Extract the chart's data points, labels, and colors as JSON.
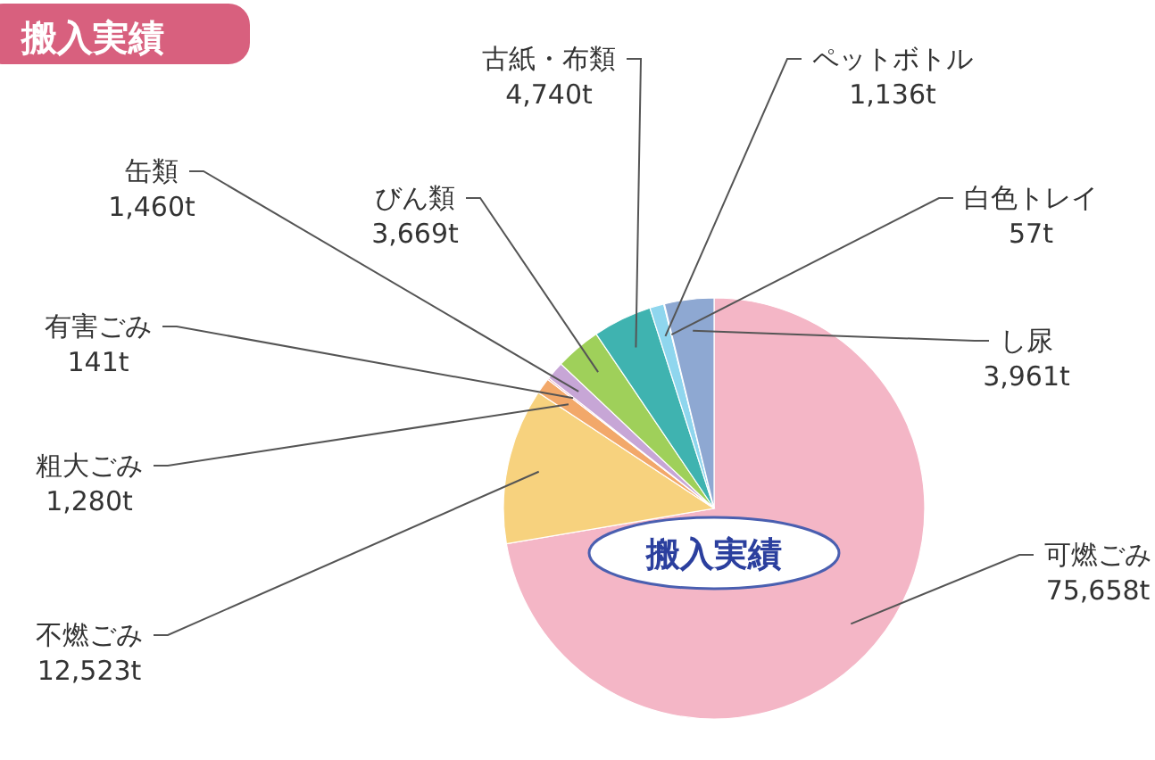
{
  "chart_data": {
    "type": "pie",
    "title": "搬入実績",
    "categories": [
      "可燃ごみ",
      "不燃ごみ",
      "粗大ごみ",
      "有害ごみ",
      "缶類",
      "びん類",
      "古紙・布類",
      "ペットボトル",
      "白色トレイ",
      "し尿"
    ],
    "values": [
      75658,
      12523,
      1280,
      141,
      1460,
      3669,
      4740,
      1136,
      57,
      3961
    ],
    "value_labels": [
      "75,658t",
      "12,523t",
      "1,280t",
      "141t",
      "1,460t",
      "3,669t",
      "4,740t",
      "1,136t",
      "57t",
      "3,961t"
    ],
    "colors": [
      "#f4b6c6",
      "#f7d27e",
      "#f2a86a",
      "#e58fa8",
      "#c7a6d6",
      "#9fd05a",
      "#3fb3b0",
      "#8fd6ee",
      "#e8f4f8",
      "#8ea8d2"
    ],
    "annotations": [
      "搬入実績"
    ]
  }
}
